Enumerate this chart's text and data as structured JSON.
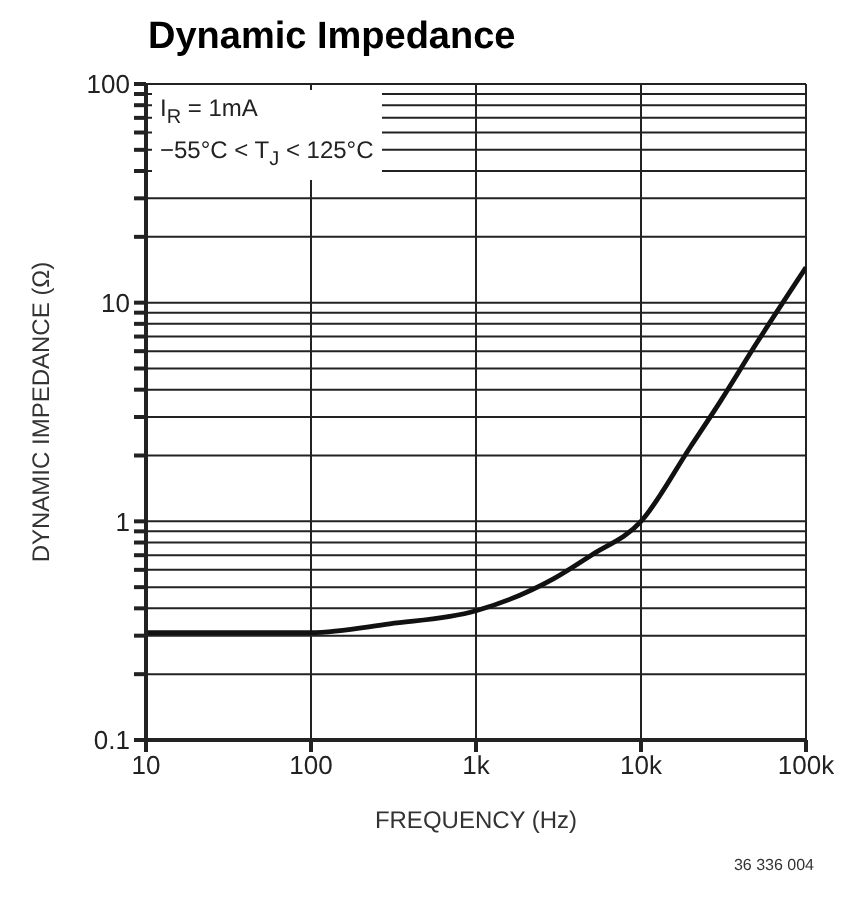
{
  "chart_data": {
    "type": "line",
    "title": "Dynamic Impedance",
    "xlabel": "FREQUENCY (Hz)",
    "ylabel": "DYNAMIC IMPEDANCE (Ω)",
    "annotations": [
      "I$_{R}$ = 1mA",
      "−55°C < T$_{J}$ < 125°C",
      "36 336 004"
    ],
    "log": "xy",
    "grid": true,
    "legend": false,
    "marker": "none",
    "line_style": "solid",
    "xlim": [
      10,
      100000
    ],
    "xticks": [
      10,
      100,
      {
        "value": 1000,
        "label": "1k"
      },
      {
        "value": 10000,
        "label": "10k"
      },
      {
        "value": 100000,
        "label": "100k"
      }
    ],
    "ylim": [
      0.1,
      100
    ],
    "yticks": [
      0.1,
      {
        "value": 0.2,
        "label": null
      },
      {
        "value": 0.3,
        "label": null
      },
      {
        "value": 0.4,
        "label": null
      },
      {
        "value": 0.5,
        "label": null
      },
      {
        "value": 0.6,
        "label": null
      },
      {
        "value": 0.7,
        "label": null
      },
      {
        "value": 0.8,
        "label": null
      },
      {
        "value": 0.9,
        "label": null
      },
      1,
      {
        "value": 2,
        "label": null
      },
      {
        "value": 3,
        "label": null
      },
      {
        "value": 4,
        "label": null
      },
      {
        "value": 5,
        "label": null
      },
      {
        "value": 6,
        "label": null
      },
      {
        "value": 7,
        "label": null
      },
      {
        "value": 8,
        "label": null
      },
      {
        "value": 9,
        "label": null
      },
      10,
      {
        "value": 20,
        "label": null
      },
      {
        "value": 30,
        "label": null
      },
      {
        "value": 40,
        "label": null
      },
      {
        "value": 50,
        "label": null
      },
      {
        "value": 60,
        "label": null
      },
      {
        "value": 70,
        "label": null
      },
      {
        "value": 80,
        "label": null
      },
      {
        "value": 90,
        "label": null
      },
      100
    ],
    "x": [
      10,
      100,
      300,
      1000,
      3000,
      5000,
      10000,
      20000,
      30000,
      50000,
      100000
    ],
    "series": [
      {
        "color": "#111111",
        "values": [
          0.31,
          0.31,
          0.34,
          0.39,
          0.55,
          0.7,
          1.0,
          2.2,
          3.5,
          6.5,
          14.5
        ]
      }
    ]
  }
}
